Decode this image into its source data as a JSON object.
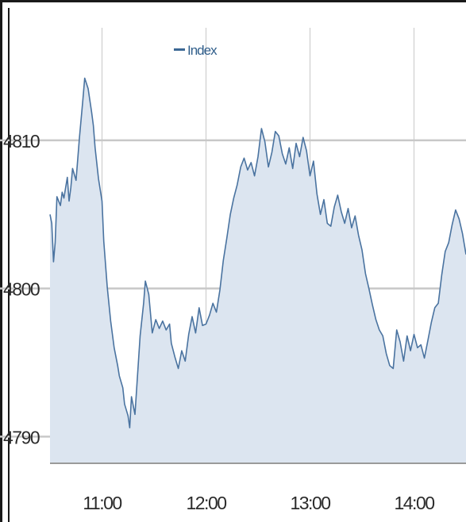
{
  "chart_data": {
    "type": "area",
    "legend": {
      "label": "Index",
      "placement": "top-left",
      "color": "#3c6894"
    },
    "x_ticks": [
      "11:00",
      "12:00",
      "13:00",
      "14:00"
    ],
    "y_ticks": [
      "4790",
      "4800",
      "4810"
    ],
    "xlim": [
      "10:30",
      "14:30"
    ],
    "ylim": [
      4788.2,
      4817.6
    ],
    "grid": true,
    "colors": {
      "line": "#4a73a0",
      "fill": "#dce5f0",
      "grid_h": "#c8c8c8",
      "grid_v": "#c8c8c8",
      "axis": "#9a9a9a"
    },
    "series": [
      {
        "name": "Index",
        "points": [
          [
            "10:30",
            4805.0
          ],
          [
            "10:31",
            4804.4
          ],
          [
            "10:32",
            4801.8
          ],
          [
            "10:33",
            4803.1
          ],
          [
            "10:34",
            4806.2
          ],
          [
            "10:36",
            4805.6
          ],
          [
            "10:37",
            4806.5
          ],
          [
            "10:38",
            4806.1
          ],
          [
            "10:40",
            4807.5
          ],
          [
            "10:41",
            4805.9
          ],
          [
            "10:42",
            4806.8
          ],
          [
            "10:43",
            4808.1
          ],
          [
            "10:45",
            4807.3
          ],
          [
            "10:47",
            4810.2
          ],
          [
            "10:49",
            4812.8
          ],
          [
            "10:50",
            4814.2
          ],
          [
            "10:52",
            4813.5
          ],
          [
            "10:54",
            4811.9
          ],
          [
            "10:55",
            4811.0
          ],
          [
            "10:56",
            4809.5
          ],
          [
            "10:58",
            4807.4
          ],
          [
            "11:00",
            4805.9
          ],
          [
            "11:01",
            4803.2
          ],
          [
            "11:03",
            4800.1
          ],
          [
            "11:05",
            4797.8
          ],
          [
            "11:07",
            4796.0
          ],
          [
            "11:09",
            4794.8
          ],
          [
            "11:10",
            4794.1
          ],
          [
            "11:12",
            4793.3
          ],
          [
            "11:13",
            4792.2
          ],
          [
            "11:15",
            4791.4
          ],
          [
            "11:16",
            4790.6
          ],
          [
            "11:17",
            4792.7
          ],
          [
            "11:19",
            4791.5
          ],
          [
            "11:21",
            4795.0
          ],
          [
            "11:22",
            4796.8
          ],
          [
            "11:24",
            4799.0
          ],
          [
            "11:25",
            4800.5
          ],
          [
            "11:27",
            4799.6
          ],
          [
            "11:29",
            4797.0
          ],
          [
            "11:31",
            4797.9
          ],
          [
            "11:33",
            4797.3
          ],
          [
            "11:35",
            4797.8
          ],
          [
            "11:37",
            4797.2
          ],
          [
            "11:39",
            4797.6
          ],
          [
            "11:40",
            4796.3
          ],
          [
            "11:42",
            4795.4
          ],
          [
            "11:44",
            4794.6
          ],
          [
            "11:46",
            4795.8
          ],
          [
            "11:48",
            4795.1
          ],
          [
            "11:50",
            4796.9
          ],
          [
            "11:52",
            4798.1
          ],
          [
            "11:54",
            4797.0
          ],
          [
            "11:56",
            4798.7
          ],
          [
            "11:58",
            4797.5
          ],
          [
            "12:00",
            4797.6
          ],
          [
            "12:02",
            4798.2
          ],
          [
            "12:04",
            4799.0
          ],
          [
            "12:06",
            4798.4
          ],
          [
            "12:08",
            4799.9
          ],
          [
            "12:10",
            4801.9
          ],
          [
            "12:12",
            4803.4
          ],
          [
            "12:14",
            4805.0
          ],
          [
            "12:16",
            4806.1
          ],
          [
            "12:18",
            4807.0
          ],
          [
            "12:20",
            4808.2
          ],
          [
            "12:22",
            4808.8
          ],
          [
            "12:24",
            4808.0
          ],
          [
            "12:26",
            4808.5
          ],
          [
            "12:28",
            4807.6
          ],
          [
            "12:30",
            4808.9
          ],
          [
            "12:32",
            4810.8
          ],
          [
            "12:34",
            4809.9
          ],
          [
            "12:36",
            4808.2
          ],
          [
            "12:38",
            4809.2
          ],
          [
            "12:40",
            4810.6
          ],
          [
            "12:42",
            4810.3
          ],
          [
            "12:44",
            4809.1
          ],
          [
            "12:46",
            4808.4
          ],
          [
            "12:48",
            4809.5
          ],
          [
            "12:50",
            4808.1
          ],
          [
            "12:52",
            4809.8
          ],
          [
            "12:54",
            4808.9
          ],
          [
            "12:56",
            4810.2
          ],
          [
            "12:58",
            4809.3
          ],
          [
            "13:00",
            4807.6
          ],
          [
            "13:02",
            4808.6
          ],
          [
            "13:04",
            4806.4
          ],
          [
            "13:06",
            4805.0
          ],
          [
            "13:08",
            4806.0
          ],
          [
            "13:10",
            4804.4
          ],
          [
            "13:12",
            4804.2
          ],
          [
            "13:14",
            4805.5
          ],
          [
            "13:16",
            4806.3
          ],
          [
            "13:18",
            4805.2
          ],
          [
            "13:20",
            4804.4
          ],
          [
            "13:22",
            4805.4
          ],
          [
            "13:24",
            4804.1
          ],
          [
            "13:26",
            4804.9
          ],
          [
            "13:28",
            4803.6
          ],
          [
            "13:30",
            4802.6
          ],
          [
            "13:32",
            4801.0
          ],
          [
            "13:34",
            4800.0
          ],
          [
            "13:36",
            4798.9
          ],
          [
            "13:38",
            4797.9
          ],
          [
            "13:40",
            4797.2
          ],
          [
            "13:42",
            4796.8
          ],
          [
            "13:44",
            4795.6
          ],
          [
            "13:46",
            4794.8
          ],
          [
            "13:48",
            4794.6
          ],
          [
            "13:50",
            4797.2
          ],
          [
            "13:52",
            4796.4
          ],
          [
            "13:54",
            4795.1
          ],
          [
            "13:56",
            4796.8
          ],
          [
            "13:58",
            4795.8
          ],
          [
            "14:00",
            4796.9
          ],
          [
            "14:02",
            4796.0
          ],
          [
            "14:04",
            4796.2
          ],
          [
            "14:06",
            4795.3
          ],
          [
            "14:08",
            4796.5
          ],
          [
            "14:10",
            4797.7
          ],
          [
            "14:12",
            4798.7
          ],
          [
            "14:14",
            4799.0
          ],
          [
            "14:16",
            4800.9
          ],
          [
            "14:18",
            4802.5
          ],
          [
            "14:20",
            4803.1
          ],
          [
            "14:22",
            4804.3
          ],
          [
            "14:24",
            4805.3
          ],
          [
            "14:26",
            4804.7
          ],
          [
            "14:28",
            4803.7
          ],
          [
            "14:30",
            4802.3
          ]
        ]
      }
    ]
  }
}
